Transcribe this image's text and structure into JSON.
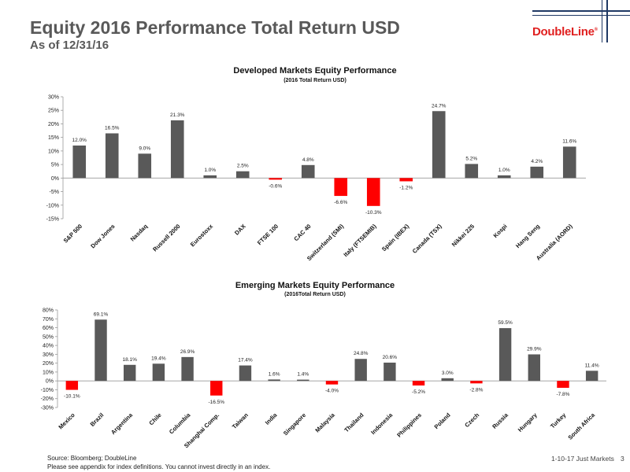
{
  "page": {
    "title": "Equity 2016 Performance Total Return USD",
    "subtitle": "As of 12/31/16",
    "logo": "DoubleLine",
    "logo_mark": "®",
    "footer_source": "Source: Bloomberg; DoubleLine",
    "footer_note": "Please see appendix for index definitions. You cannot invest directly in an index.",
    "footer_right": "1-10-17 Just Markets",
    "page_number": "3"
  },
  "colors": {
    "positive": "#595959",
    "negative": "#ff0000",
    "logo": "#e02020",
    "accent": "#1f3864"
  },
  "chart_data": [
    {
      "type": "bar",
      "title": "Developed Markets Equity Performance",
      "subtitle": "(2016 Total Return USD)",
      "categories": [
        "S&P 500",
        "Dow Jones",
        "Nasdaq",
        "Russell 2000",
        "Eurostoxx",
        "DAX",
        "FTSE 100",
        "CAC 40",
        "Switzerland (SMI)",
        "Italy (FTSEMIB)",
        "Spain (IBEX)",
        "Canada (TSX)",
        "Nikkei 225",
        "Kospi",
        "Hang Seng",
        "Australia (AORD)"
      ],
      "values": [
        12.0,
        16.5,
        9.0,
        21.3,
        1.0,
        2.5,
        -0.6,
        4.8,
        -6.6,
        -10.3,
        -1.2,
        24.7,
        5.2,
        1.0,
        4.2,
        11.6
      ],
      "labels": [
        "12.0%",
        "16.5%",
        "9.0%",
        "21.3%",
        "1.0%",
        "2.5%",
        "-0.6%",
        "4.8%",
        "-6.6%",
        "-10.3%",
        "-1.2%",
        "24.7%",
        "5.2%",
        "1.0%",
        "4.2%",
        "11.6%"
      ],
      "ylim": [
        -15,
        30
      ],
      "yticks": [
        "-15%",
        "-10%",
        "-5%",
        "0%",
        "5%",
        "10%",
        "15%",
        "20%",
        "25%",
        "30%"
      ],
      "grid": false
    },
    {
      "type": "bar",
      "title": "Emerging Markets Equity Performance",
      "subtitle": "(2016Total Return USD)",
      "categories": [
        "Mexico",
        "Brazil",
        "Argentina",
        "Chile",
        "Columbia",
        "Shanghai Comp.",
        "Taiwan",
        "India",
        "Singapore",
        "Malaysia",
        "Thailand",
        "Indonesia",
        "Philippines",
        "Poland",
        "Czech",
        "Russia",
        "Hungary",
        "Turkey",
        "South Africa"
      ],
      "values": [
        -10.1,
        69.1,
        18.1,
        19.4,
        26.9,
        -16.5,
        17.4,
        1.6,
        1.4,
        -4.0,
        24.8,
        20.6,
        -5.2,
        3.0,
        -2.8,
        59.5,
        29.9,
        -7.8,
        11.4
      ],
      "labels": [
        "-10.1%",
        "69.1%",
        "18.1%",
        "19.4%",
        "26.9%",
        "-16.5%",
        "17.4%",
        "1.6%",
        "1.4%",
        "-4.0%",
        "24.8%",
        "20.6%",
        "-5.2%",
        "3.0%",
        "-2.8%",
        "59.5%",
        "29.9%",
        "-7.8%",
        "11.4%"
      ],
      "ylim": [
        -30,
        80
      ],
      "yticks": [
        "-30%",
        "-20%",
        "-10%",
        "0%",
        "10%",
        "20%",
        "30%",
        "40%",
        "50%",
        "60%",
        "70%",
        "80%"
      ],
      "grid": false
    }
  ]
}
